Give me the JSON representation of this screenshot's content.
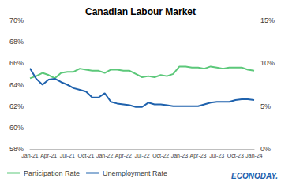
{
  "chart_data": {
    "type": "line",
    "title": "Canadian Labour Market",
    "annotation": "ECONODAY.",
    "categories": [
      "Jan-21",
      null,
      null,
      "Apr-21",
      null,
      null,
      "Jul-21",
      null,
      null,
      "Oct-21",
      null,
      null,
      "Jan-22",
      null,
      null,
      "Apr-22",
      null,
      null,
      "Jul-22",
      null,
      null,
      "Oct-22",
      null,
      null,
      "Jan-23",
      null,
      null,
      "Apr-23",
      null,
      null,
      "Jul-23",
      null,
      null,
      "Oct-23",
      null,
      null,
      "Jan-24"
    ],
    "series": [
      {
        "name": "Participation Rate",
        "color": "#5cc87a",
        "axis": "y",
        "values": [
          64.6,
          64.8,
          65.1,
          64.9,
          64.6,
          65.1,
          65.2,
          65.2,
          65.5,
          65.4,
          65.3,
          65.3,
          65.1,
          65.4,
          65.4,
          65.3,
          65.3,
          65.0,
          64.7,
          64.8,
          64.7,
          64.9,
          64.8,
          65.0,
          65.7,
          65.7,
          65.6,
          65.6,
          65.5,
          65.7,
          65.6,
          65.5,
          65.6,
          65.6,
          65.6,
          65.4,
          65.3
        ]
      },
      {
        "name": "Unemployment Rate",
        "color": "#1f62ad",
        "axis": "y2",
        "values": [
          9.4,
          8.2,
          7.5,
          8.1,
          8.2,
          7.8,
          7.5,
          7.1,
          6.9,
          6.7,
          6.0,
          6.0,
          6.5,
          5.5,
          5.3,
          5.2,
          5.1,
          4.9,
          4.9,
          5.4,
          5.2,
          5.2,
          5.1,
          5.0,
          5.0,
          5.0,
          5.0,
          5.0,
          5.2,
          5.4,
          5.5,
          5.5,
          5.5,
          5.7,
          5.8,
          5.8,
          5.7
        ]
      }
    ],
    "ylim": [
      58,
      70
    ],
    "yticks": [
      {
        "value": 58,
        "label": "58%"
      },
      {
        "value": 60,
        "label": "60%"
      },
      {
        "value": 62,
        "label": "62%"
      },
      {
        "value": 64,
        "label": "64%"
      },
      {
        "value": 66,
        "label": "66%"
      },
      {
        "value": 68,
        "label": "68%"
      },
      {
        "value": 70,
        "label": "70%"
      }
    ],
    "y2lim": [
      0,
      15
    ],
    "y2ticks": [
      {
        "value": 0,
        "label": "0%"
      },
      {
        "value": 5,
        "label": "5%"
      },
      {
        "value": 10,
        "label": "10%"
      },
      {
        "value": 15,
        "label": "15%"
      }
    ],
    "grid": false,
    "legend": "bottom"
  }
}
